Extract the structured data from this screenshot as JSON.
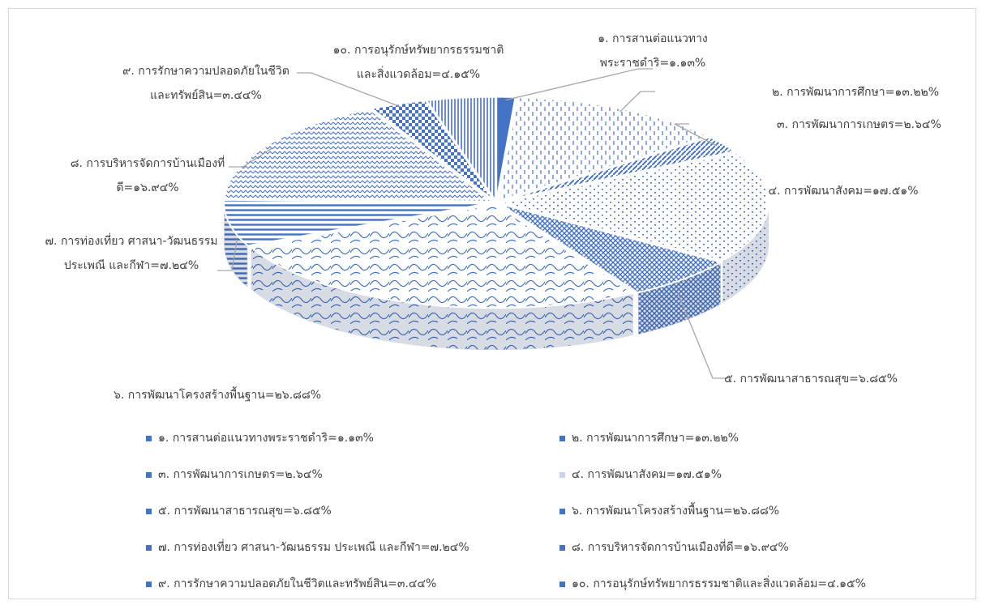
{
  "chart_data": {
    "type": "pie",
    "title": "",
    "style": "3d-exploded-patterned",
    "legend_position": "bottom",
    "slices": [
      {
        "label": "๑. การสานต่อแนวทางพระราชดำริ=๑.๑๓%",
        "callout": [
          "๑. การสานต่อแนวทาง",
          "พระราชดำริ=๑.๑๓%"
        ],
        "value": 1.13,
        "color": "#4472c4",
        "pattern": "solid"
      },
      {
        "label": "๒. การพัฒนาการศึกษา=๑๓.๒๒%",
        "callout": [
          "๒. การพัฒนาการศึกษา=๑๓.๒๒%"
        ],
        "value": 13.22,
        "color": "#4472c4",
        "pattern": "dashed-vertical"
      },
      {
        "label": "๓. การพัฒนาการเกษตร=๒.๖๔%",
        "callout": [
          "๓. การพัฒนาการเกษตร=๒.๖๔%"
        ],
        "value": 2.64,
        "color": "#4472c4",
        "pattern": "diagonal-brick"
      },
      {
        "label": "๔. การพัฒนาสังคม=๑๗.๕๑%",
        "callout": [
          "๔. การพัฒนาสังคม=๑๗.๕๑%"
        ],
        "value": 17.51,
        "color": "#4472c4",
        "pattern": "sparse-dots"
      },
      {
        "label": "๕. การพัฒนาสาธารณสุข=๖.๘๕%",
        "callout": [
          "๕. การพัฒนาสาธารณสุข=๖.๘๕%"
        ],
        "value": 6.85,
        "color": "#4472c4",
        "pattern": "diagonal-cross"
      },
      {
        "label": "๖. การพัฒนาโครงสร้างพื้นฐาน=๒๖.๘๘%",
        "callout": [
          "๖. การพัฒนาโครงสร้างพื้นฐาน=๒๖.๘๘%"
        ],
        "value": 26.88,
        "color": "#4472c4",
        "pattern": "waves"
      },
      {
        "label": "๗. การท่องเที่ยว ศาสนา-วัฒนธรรม ประเพณี และกีฬา=๗.๒๔%",
        "callout": [
          "๗. การท่องเที่ยว ศาสนา-วัฒนธรรม",
          "ประเพณี และกีฬา=๗.๒๔%"
        ],
        "value": 7.24,
        "color": "#4472c4",
        "pattern": "horizontal-lines"
      },
      {
        "label": "๘. การบริหารจัดการบ้านเมืองที่ดี=๑๖.๙๔%",
        "callout": [
          "๘. การบริหารจัดการบ้านเมืองที่",
          "ดี=๑๖.๙๔%"
        ],
        "value": 16.94,
        "color": "#4472c4",
        "pattern": "zigzag"
      },
      {
        "label": "๙. การรักษาความปลอดภัยในชีวิตและทรัพย์สิน=๓.๔๔%",
        "callout": [
          "๙. การรักษาความปลอดภัยในชีวิต",
          "และทรัพย์สิน=๓.๔๔%"
        ],
        "value": 3.44,
        "color": "#4472c4",
        "pattern": "checker"
      },
      {
        "label": "๑๐. การอนุรักษ์ทรัพยากรธรรมชาติและสิ่งแวดล้อม=๔.๑๕%",
        "callout": [
          "๑๐. การอนุรักษ์ทรัพยากรธรรมชาติ",
          "และสิ่งแวดล้อม=๔.๑๕%"
        ],
        "value": 4.15,
        "color": "#4472c4",
        "pattern": "vertical-lines"
      }
    ]
  }
}
